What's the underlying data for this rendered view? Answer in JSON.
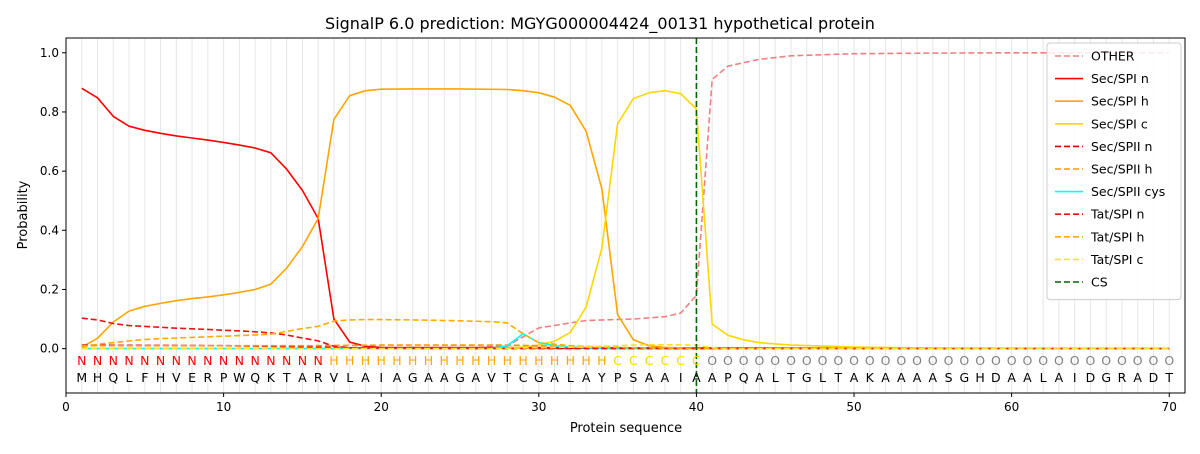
{
  "chart_data": {
    "type": "line",
    "title": "SignalP 6.0 prediction: MGYG000004424_00131 hypothetical protein",
    "xlabel": "Protein sequence",
    "ylabel": "Probability",
    "xlim": [
      0,
      71
    ],
    "ylim": [
      -0.15,
      1.05
    ],
    "xticks": [
      0,
      10,
      20,
      30,
      40,
      50,
      60,
      70
    ],
    "yticks": [
      0.0,
      0.2,
      0.4,
      0.6,
      0.8,
      1.0
    ],
    "xtick_labels": [
      "0",
      "10",
      "20",
      "30",
      "40",
      "50",
      "60",
      "70"
    ],
    "ytick_labels": [
      "0.0",
      "0.2",
      "0.4",
      "0.6",
      "0.8",
      "1.0"
    ],
    "grid": "vertical lines at each residue position",
    "legend_position": "top-right",
    "sequence": "MHQLFHVERPWQKTARVLAIAGAAGAVTCGALAYPSAAIAAPQALTGLTAKAAAASGHDAALAIDGRADT",
    "region_labels": "NNNNNNNNNNNNNNNNHHHHHHHHHHHHHHHHHHCCCCCCOOOOOOOOOOOOOOOOOOOOOOOOOOOOOO",
    "region_colors": {
      "N": "#ff0000",
      "H": "#ffa500",
      "C": "#ffd700",
      "O": "#808080"
    },
    "cleavage_site": 40,
    "series": [
      {
        "name": "OTHER",
        "color": "#f08080",
        "dash": true,
        "x": [
          1,
          25,
          28,
          30,
          33,
          36,
          38,
          39,
          40,
          41,
          42,
          44,
          46,
          50,
          55,
          60,
          70
        ],
        "y": [
          0.0,
          0.0,
          0.01,
          0.07,
          0.095,
          0.1,
          0.108,
          0.12,
          0.18,
          0.91,
          0.955,
          0.978,
          0.99,
          0.997,
          0.999,
          1.0,
          1.0
        ]
      },
      {
        "name": "Sec/SPI n",
        "color": "#ff0000",
        "dash": false,
        "x": [
          1,
          2,
          3,
          4,
          5,
          6,
          7,
          8,
          9,
          10,
          11,
          12,
          13,
          14,
          15,
          16,
          17,
          18,
          19,
          20,
          70
        ],
        "y": [
          0.88,
          0.848,
          0.785,
          0.752,
          0.738,
          0.728,
          0.719,
          0.712,
          0.705,
          0.697,
          0.688,
          0.678,
          0.662,
          0.607,
          0.535,
          0.44,
          0.1,
          0.022,
          0.008,
          0.004,
          0.0
        ]
      },
      {
        "name": "Sec/SPI h",
        "color": "#ffa500",
        "dash": false,
        "x": [
          1,
          2,
          3,
          4,
          5,
          6,
          7,
          8,
          9,
          10,
          11,
          12,
          13,
          14,
          15,
          16,
          17,
          18,
          19,
          20,
          22,
          25,
          28,
          29,
          30,
          31,
          32,
          33,
          34,
          35,
          36,
          37,
          38,
          40,
          70
        ],
        "y": [
          0.005,
          0.035,
          0.09,
          0.127,
          0.143,
          0.153,
          0.162,
          0.169,
          0.175,
          0.182,
          0.19,
          0.2,
          0.218,
          0.272,
          0.345,
          0.44,
          0.775,
          0.855,
          0.872,
          0.877,
          0.878,
          0.878,
          0.876,
          0.872,
          0.865,
          0.85,
          0.822,
          0.735,
          0.54,
          0.115,
          0.03,
          0.01,
          0.004,
          0.001,
          0.0
        ]
      },
      {
        "name": "Sec/SPI c",
        "color": "#ffd700",
        "dash": false,
        "x": [
          1,
          27,
          29,
          30,
          31,
          32,
          33,
          34,
          35,
          36,
          37,
          38,
          39,
          40,
          41,
          42,
          43,
          44,
          46,
          50,
          55,
          70
        ],
        "y": [
          0.0,
          0.0,
          0.005,
          0.012,
          0.025,
          0.055,
          0.14,
          0.34,
          0.76,
          0.845,
          0.865,
          0.872,
          0.862,
          0.81,
          0.083,
          0.045,
          0.03,
          0.02,
          0.012,
          0.005,
          0.002,
          0.0
        ]
      },
      {
        "name": "Sec/SPII n",
        "color": "#dd0000",
        "dash": true,
        "x": [
          1,
          10,
          13,
          16,
          18,
          25,
          30,
          35,
          40,
          70
        ],
        "y": [
          0.012,
          0.01,
          0.008,
          0.005,
          0.003,
          0.002,
          0.001,
          0.001,
          0.0,
          0.0
        ]
      },
      {
        "name": "Sec/SPII h",
        "color": "#ff9900",
        "dash": true,
        "x": [
          1,
          5,
          10,
          15,
          20,
          25,
          28,
          30,
          33,
          35,
          38,
          40,
          70
        ],
        "y": [
          0.01,
          0.01,
          0.01,
          0.01,
          0.012,
          0.012,
          0.012,
          0.01,
          0.006,
          0.003,
          0.001,
          0.0,
          0.0
        ]
      },
      {
        "name": "Sec/SPII cys",
        "color": "#00ffff",
        "dash": false,
        "x": [
          1,
          27,
          28,
          29,
          30,
          31,
          32,
          33,
          35,
          70
        ],
        "y": [
          0.0,
          0.0,
          0.01,
          0.05,
          0.02,
          0.01,
          0.005,
          0.002,
          0.0,
          0.0
        ]
      },
      {
        "name": "Tat/SPI n",
        "color": "#ee1111",
        "dash": true,
        "x": [
          1,
          2,
          3,
          4,
          5,
          6,
          7,
          8,
          9,
          10,
          11,
          12,
          13,
          14,
          15,
          16,
          17,
          18,
          20,
          25,
          30,
          70
        ],
        "y": [
          0.103,
          0.097,
          0.085,
          0.078,
          0.075,
          0.072,
          0.069,
          0.067,
          0.065,
          0.062,
          0.06,
          0.057,
          0.053,
          0.046,
          0.036,
          0.026,
          0.008,
          0.003,
          0.001,
          0.0,
          0.0,
          0.0
        ]
      },
      {
        "name": "Tat/SPI h",
        "color": "#ffaa00",
        "dash": true,
        "x": [
          1,
          2,
          3,
          4,
          5,
          6,
          7,
          8,
          9,
          10,
          11,
          12,
          13,
          14,
          15,
          16,
          17,
          18,
          19,
          20,
          22,
          25,
          27,
          28,
          29,
          30,
          32,
          34,
          36,
          38,
          40,
          41,
          70
        ],
        "y": [
          0.005,
          0.015,
          0.02,
          0.026,
          0.031,
          0.034,
          0.036,
          0.038,
          0.04,
          0.042,
          0.044,
          0.046,
          0.049,
          0.058,
          0.068,
          0.075,
          0.093,
          0.097,
          0.098,
          0.098,
          0.097,
          0.094,
          0.091,
          0.087,
          0.05,
          0.02,
          0.01,
          0.005,
          0.003,
          0.002,
          0.001,
          0.0,
          0.0
        ]
      },
      {
        "name": "Tat/SPI c",
        "color": "#ffe030",
        "dash": true,
        "x": [
          1,
          27,
          30,
          33,
          35,
          36,
          37,
          38,
          39,
          40,
          41,
          42,
          70
        ],
        "y": [
          0.0,
          0.0,
          0.003,
          0.006,
          0.01,
          0.012,
          0.013,
          0.013,
          0.013,
          0.012,
          0.003,
          0.0,
          0.0
        ]
      },
      {
        "name": "CS",
        "color": "#006400",
        "dash": true,
        "x": [],
        "y": []
      }
    ]
  }
}
